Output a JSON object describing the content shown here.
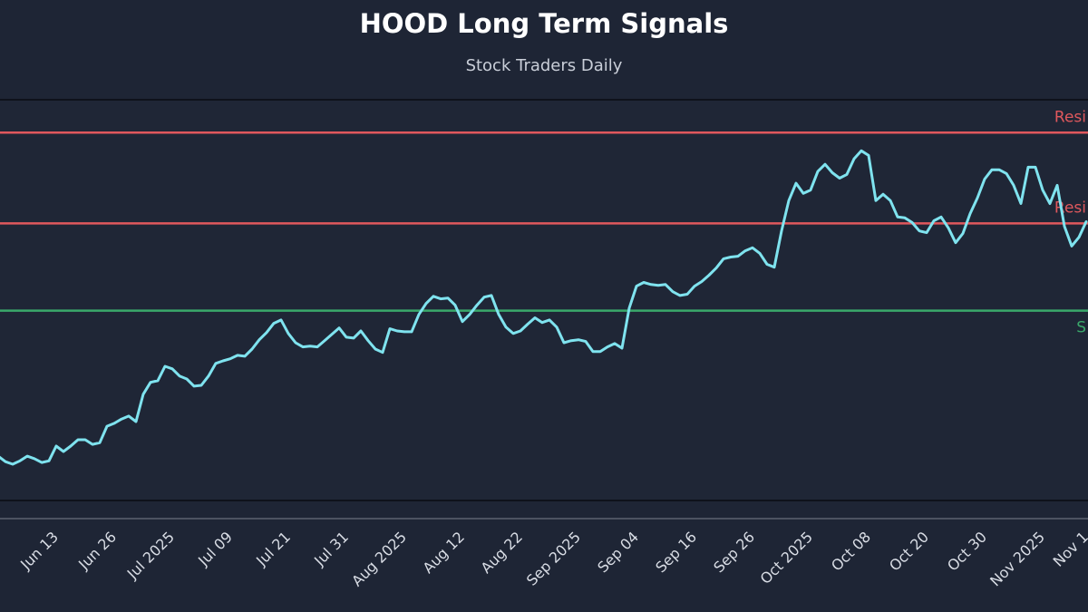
{
  "chart_data": {
    "type": "line",
    "title": "HOOD Long Term Signals",
    "subtitle": "Stock Traders Daily",
    "color": "#7fe3ef",
    "ylim": [
      66,
      161
    ],
    "categories": [
      null,
      null,
      null,
      null,
      null,
      null,
      null,
      null,
      "Jun 13",
      null,
      null,
      null,
      null,
      null,
      null,
      null,
      "Jun 26",
      null,
      null,
      null,
      null,
      null,
      null,
      null,
      "Jul 2025",
      null,
      null,
      null,
      null,
      null,
      null,
      null,
      "Jul 09",
      null,
      null,
      null,
      null,
      null,
      null,
      null,
      "Jul 21",
      null,
      null,
      null,
      null,
      null,
      null,
      null,
      "Jul 31",
      null,
      null,
      null,
      null,
      null,
      null,
      null,
      "Aug 2025",
      null,
      null,
      null,
      null,
      null,
      null,
      null,
      "Aug 12",
      null,
      null,
      null,
      null,
      null,
      null,
      null,
      "Aug 22",
      null,
      null,
      null,
      null,
      null,
      null,
      null,
      "Sep 2025",
      null,
      null,
      null,
      null,
      null,
      null,
      null,
      "Sep 04",
      null,
      null,
      null,
      null,
      null,
      null,
      null,
      "Sep 16",
      null,
      null,
      null,
      null,
      null,
      null,
      null,
      "Sep 26",
      null,
      null,
      null,
      null,
      null,
      null,
      null,
      "Oct 2025",
      null,
      null,
      null,
      null,
      null,
      null,
      null,
      "Oct 08",
      null,
      null,
      null,
      null,
      null,
      null,
      null,
      "Oct 20",
      null,
      null,
      null,
      null,
      null,
      null,
      null,
      "Oct 30",
      null,
      null,
      null,
      null,
      null,
      null,
      null,
      "Nov 2025",
      null,
      null,
      null,
      null,
      null,
      "Nov 1"
    ],
    "values": [
      76.5,
      75.2,
      74.6,
      75.4,
      76.5,
      75.9,
      75.0,
      75.4,
      78.9,
      77.6,
      78.9,
      80.4,
      80.4,
      79.3,
      79.7,
      83.6,
      84.3,
      85.3,
      86.0,
      84.7,
      91.2,
      94.0,
      94.4,
      97.8,
      97.2,
      95.5,
      94.8,
      93.1,
      93.3,
      95.5,
      98.5,
      99.1,
      99.6,
      100.4,
      100.2,
      101.9,
      104.1,
      105.8,
      108.0,
      108.8,
      105.6,
      103.4,
      102.4,
      102.6,
      102.4,
      103.9,
      105.4,
      106.9,
      104.7,
      104.5,
      106.2,
      103.9,
      101.9,
      101.1,
      106.7,
      106.2,
      106.0,
      106.0,
      110.1,
      112.7,
      114.4,
      113.8,
      114.0,
      112.3,
      108.4,
      110.1,
      112.3,
      114.2,
      114.6,
      110.1,
      107.1,
      105.6,
      106.2,
      107.8,
      109.3,
      108.2,
      108.8,
      107.1,
      103.4,
      103.9,
      104.1,
      103.7,
      101.3,
      101.3,
      102.4,
      103.2,
      102.1,
      111.6,
      116.8,
      117.7,
      117.2,
      117.0,
      117.2,
      115.5,
      114.6,
      114.9,
      116.8,
      117.9,
      119.4,
      121.1,
      123.3,
      123.7,
      123.9,
      125.2,
      125.9,
      124.6,
      122.0,
      121.3,
      129.9,
      137.1,
      141.2,
      138.8,
      139.6,
      144.0,
      145.7,
      143.7,
      142.4,
      143.3,
      147.0,
      148.9,
      147.8,
      137.1,
      138.6,
      137.1,
      133.2,
      133.0,
      131.9,
      129.9,
      129.5,
      132.3,
      133.2,
      130.6,
      127.1,
      129.3,
      134.0,
      137.7,
      142.2,
      144.4,
      144.4,
      143.5,
      140.7,
      136.4,
      145.0,
      145.0,
      139.6,
      136.4,
      140.7,
      131.0,
      126.3,
      128.4,
      132.1
    ],
    "reference_lines": [
      {
        "label": "Resi",
        "value": 153.2,
        "color": "#e0585d",
        "label_side": "above"
      },
      {
        "label": "Resi",
        "value": 131.7,
        "color": "#e0585d",
        "label_side": "above"
      },
      {
        "label": "S",
        "value": 111.0,
        "color": "#3aa86b",
        "label_side": "below"
      }
    ]
  }
}
